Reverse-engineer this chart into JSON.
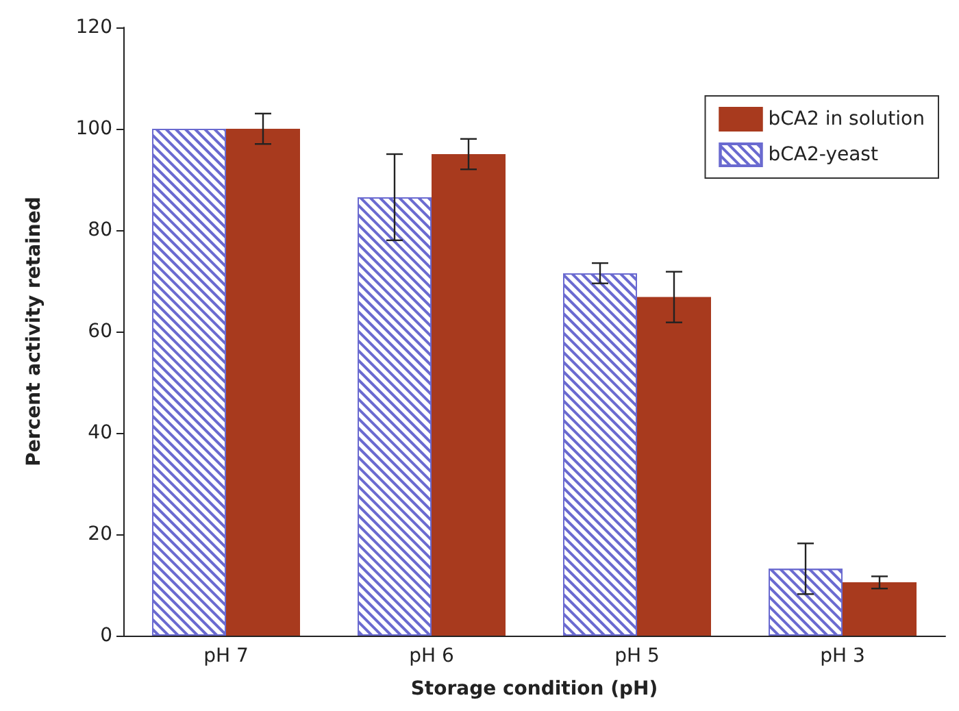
{
  "chart_data": {
    "type": "bar",
    "xlabel": "Storage condition (pH)",
    "ylabel": "Percent activity retained",
    "categories": [
      "pH 7",
      "pH 6",
      "pH 5",
      "pH 3"
    ],
    "series": [
      {
        "name": "bCA2-yeast",
        "color": "#6a6ad0",
        "values": [
          100,
          86.5,
          71.5,
          13.2
        ],
        "errors": [
          null,
          8.5,
          2,
          5
        ]
      },
      {
        "name": "bCA2 in solution",
        "color": "#a83a1e",
        "values": [
          100,
          95,
          66.8,
          10.5
        ],
        "errors": [
          3,
          3,
          5,
          1.2
        ]
      }
    ],
    "ylim": [
      0,
      120
    ],
    "yticks": [
      0,
      20,
      40,
      60,
      80,
      100,
      120
    ],
    "grid": false,
    "legend": "top right"
  }
}
